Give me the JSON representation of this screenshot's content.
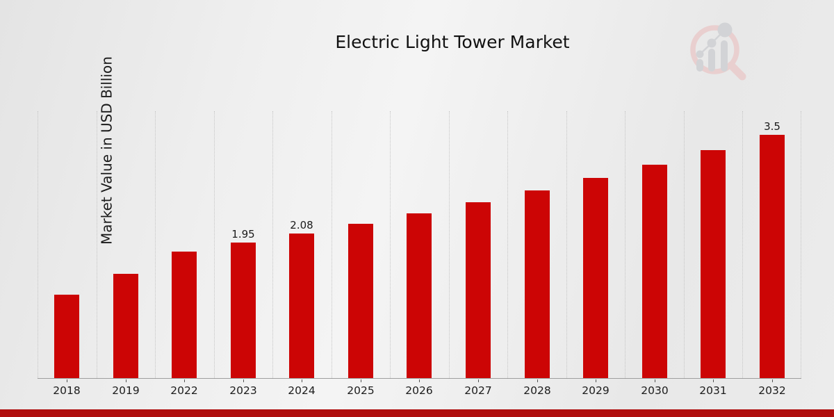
{
  "title": "Electric Light Tower Market",
  "colors": {
    "bar": "#cc0505",
    "footer_accent": "#b00f0f",
    "watermark_ring": "#e9cfcf",
    "watermark_bars": "#d2d3d6"
  },
  "chart_data": {
    "type": "bar",
    "title": "Electric Light Tower Market",
    "xlabel": "",
    "ylabel": "Market Value in USD Billion",
    "categories": [
      "2018",
      "2019",
      "2022",
      "2023",
      "2024",
      "2025",
      "2026",
      "2027",
      "2028",
      "2029",
      "2030",
      "2031",
      "2032"
    ],
    "values": [
      1.2,
      1.5,
      1.82,
      1.95,
      2.08,
      2.22,
      2.37,
      2.53,
      2.7,
      2.88,
      3.07,
      3.28,
      3.5
    ],
    "bar_labels": [
      "",
      "",
      "",
      "1.95",
      "2.08",
      "",
      "",
      "",
      "",
      "",
      "",
      "",
      "3.5"
    ],
    "ylim": [
      0,
      3.85
    ],
    "grid": "vertical-dotted",
    "legend": "none",
    "bar_color": "#cc0505"
  },
  "footer": {}
}
